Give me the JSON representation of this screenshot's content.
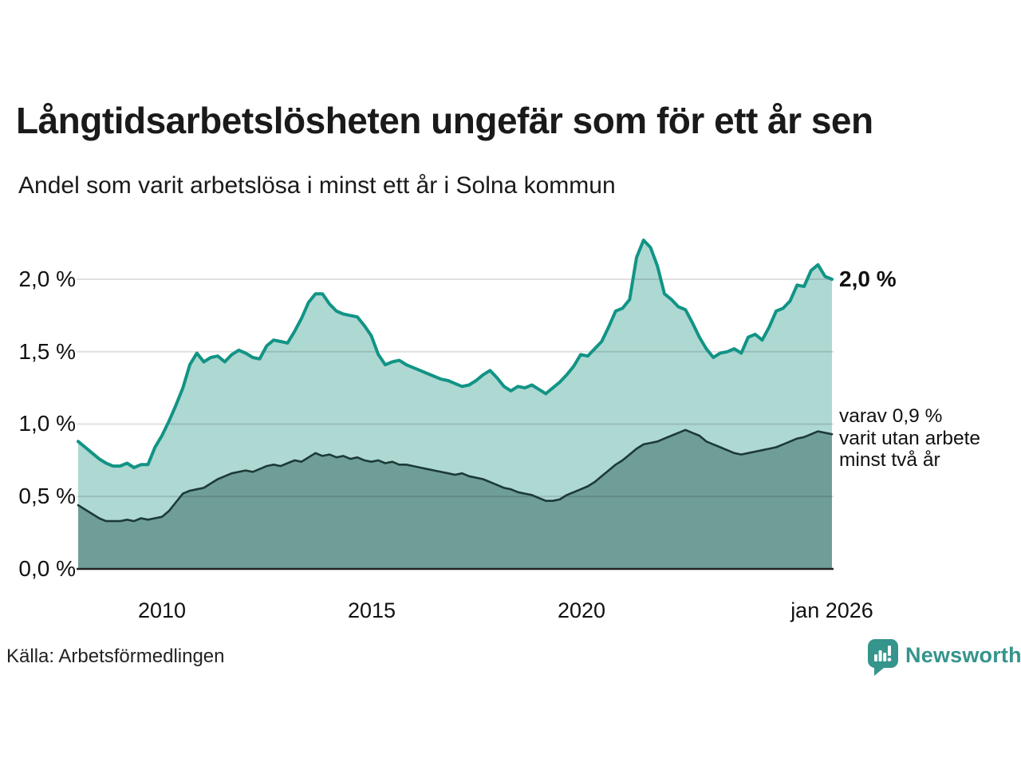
{
  "header": {
    "title": "Långtidsarbetslösheten ungefär som för ett år sen",
    "subtitle": "Andel som varit arbetslösa i minst ett år i Solna kommun"
  },
  "chart_data": {
    "type": "area",
    "title": "Långtidsarbetslösheten ungefär som för ett år sen",
    "subtitle": "Andel som varit arbetslösa i minst ett år i Solna kommun",
    "x_start": "2008-01",
    "x_end": "2026-01",
    "x_step_months": 2,
    "ylim": [
      0,
      2.3
    ],
    "grid": true,
    "legend": "none",
    "y_ticks": [
      2.0,
      1.5,
      1.0,
      0.5,
      0.0
    ],
    "y_tick_labels": [
      "2,0 %",
      "1,5 %",
      "1,0 %",
      "0,5 %",
      "0,0 %"
    ],
    "x_ticks": [
      2010,
      2015,
      2020,
      2026
    ],
    "x_tick_labels": [
      "2010",
      "2015",
      "2020",
      "jan 2026"
    ],
    "series": [
      {
        "name": "Andel som varit arbetslösa minst ett år",
        "latest_value": 2.0,
        "line_color": "#119485",
        "fill_color": "#aed8d2",
        "line_width": 4,
        "values": [
          0.88,
          0.84,
          0.8,
          0.76,
          0.73,
          0.71,
          0.71,
          0.73,
          0.7,
          0.72,
          0.72,
          0.84,
          0.92,
          1.02,
          1.13,
          1.25,
          1.41,
          1.49,
          1.43,
          1.46,
          1.47,
          1.43,
          1.48,
          1.51,
          1.49,
          1.46,
          1.45,
          1.54,
          1.58,
          1.57,
          1.56,
          1.64,
          1.73,
          1.84,
          1.9,
          1.9,
          1.83,
          1.78,
          1.76,
          1.75,
          1.74,
          1.68,
          1.61,
          1.48,
          1.41,
          1.43,
          1.44,
          1.41,
          1.39,
          1.37,
          1.35,
          1.33,
          1.31,
          1.3,
          1.28,
          1.26,
          1.27,
          1.3,
          1.34,
          1.37,
          1.32,
          1.26,
          1.23,
          1.26,
          1.25,
          1.27,
          1.24,
          1.21,
          1.25,
          1.29,
          1.34,
          1.4,
          1.48,
          1.47,
          1.52,
          1.57,
          1.67,
          1.78,
          1.8,
          1.86,
          2.15,
          2.27,
          2.22,
          2.09,
          1.9,
          1.86,
          1.81,
          1.79,
          1.7,
          1.6,
          1.52,
          1.46,
          1.49,
          1.5,
          1.52,
          1.49,
          1.6,
          1.62,
          1.58,
          1.67,
          1.78,
          1.8,
          1.85,
          1.96,
          1.95,
          2.06,
          2.1,
          2.02,
          2.0
        ]
      },
      {
        "name": "varav utan arbete minst två år",
        "latest_value": 0.9,
        "line_color": "#1c3a37",
        "fill_color": "#6f9e98",
        "line_width": 2.6,
        "values": [
          0.44,
          0.41,
          0.38,
          0.35,
          0.33,
          0.33,
          0.33,
          0.34,
          0.33,
          0.35,
          0.34,
          0.35,
          0.36,
          0.4,
          0.46,
          0.52,
          0.54,
          0.55,
          0.56,
          0.59,
          0.62,
          0.64,
          0.66,
          0.67,
          0.68,
          0.67,
          0.69,
          0.71,
          0.72,
          0.71,
          0.73,
          0.75,
          0.74,
          0.77,
          0.8,
          0.78,
          0.79,
          0.77,
          0.78,
          0.76,
          0.77,
          0.75,
          0.74,
          0.75,
          0.73,
          0.74,
          0.72,
          0.72,
          0.71,
          0.7,
          0.69,
          0.68,
          0.67,
          0.66,
          0.65,
          0.66,
          0.64,
          0.63,
          0.62,
          0.6,
          0.58,
          0.56,
          0.55,
          0.53,
          0.52,
          0.51,
          0.49,
          0.47,
          0.47,
          0.48,
          0.51,
          0.53,
          0.55,
          0.57,
          0.6,
          0.64,
          0.68,
          0.72,
          0.75,
          0.79,
          0.83,
          0.86,
          0.87,
          0.88,
          0.9,
          0.92,
          0.94,
          0.96,
          0.94,
          0.92,
          0.88,
          0.86,
          0.84,
          0.82,
          0.8,
          0.79,
          0.8,
          0.81,
          0.82,
          0.83,
          0.84,
          0.86,
          0.88,
          0.9,
          0.91,
          0.93,
          0.95,
          0.94,
          0.93
        ]
      }
    ]
  },
  "annotations": {
    "latest_total": "2,0 %",
    "latest_secondary": "varav 0,9 %\nvarit utan arbete\nminst två år"
  },
  "footer": {
    "source": "Källa: Arbetsförmedlingen",
    "brand": "Newsworthy",
    "brand_color": "#35948c"
  },
  "colors": {
    "grid": "rgba(0,0,0,0.12)",
    "axis": "#222222",
    "text": "#1a1a1a"
  }
}
